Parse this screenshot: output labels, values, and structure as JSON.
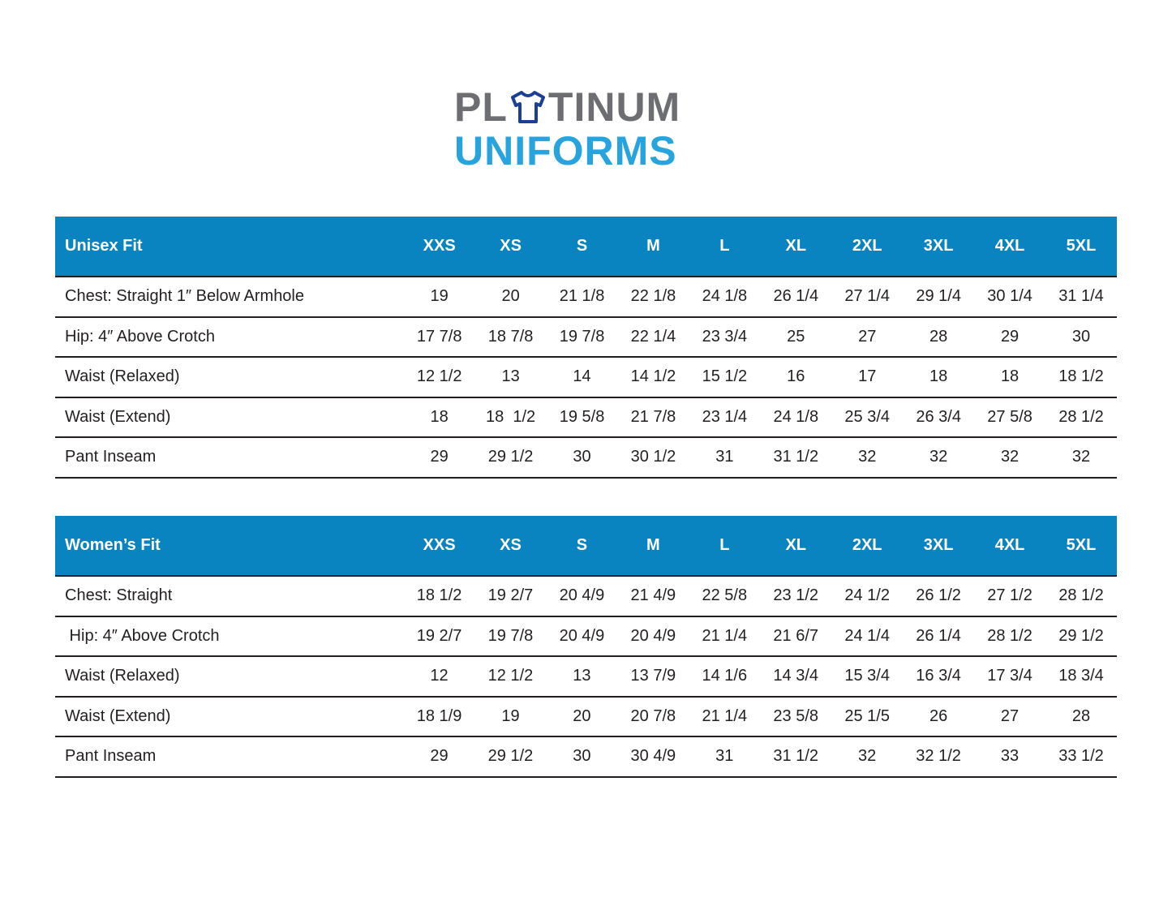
{
  "logo": {
    "line1": "PLATINUM",
    "line2": "UNIFORMS",
    "colors": {
      "gray": "#6d6e71",
      "blue": "#27a3de",
      "shirt": "#1b3f94"
    }
  },
  "header_color": "#0a84c0",
  "sizes": [
    "XXS",
    "XS",
    "S",
    "M",
    "L",
    "XL",
    "2XL",
    "3XL",
    "4XL",
    "5XL"
  ],
  "tables": [
    {
      "title": "Unisex Fit",
      "rows": [
        {
          "label": "Chest: Straight 1″ Below Armhole",
          "values": [
            "19",
            "20",
            "21 1/8",
            "22 1/8",
            "24 1/8",
            "26 1/4",
            "27 1/4",
            "29 1/4",
            "30 1/4",
            "31 1/4"
          ]
        },
        {
          "label": "Hip: 4″ Above Crotch",
          "values": [
            "17 7/8",
            "18 7/8",
            "19 7/8",
            "22 1/4",
            "23 3/4",
            "25",
            "27",
            "28",
            "29",
            "30"
          ]
        },
        {
          "label": "Waist (Relaxed)",
          "values": [
            "12 1/2",
            "13",
            "14",
            "14 1/2",
            "15 1/2",
            "16",
            "17",
            "18",
            "18",
            "18 1/2"
          ]
        },
        {
          "label": "Waist (Extend)",
          "values": [
            "18",
            "18  1/2",
            "19 5/8",
            "21 7/8",
            "23 1/4",
            "24 1/8",
            "25 3/4",
            "26 3/4",
            "27 5/8",
            "28 1/2"
          ]
        },
        {
          "label": "Pant Inseam",
          "values": [
            "29",
            "29 1/2",
            "30",
            "30 1/2",
            "31",
            "31 1/2",
            "32",
            "32",
            "32",
            "32"
          ]
        }
      ]
    },
    {
      "title": "Women’s Fit",
      "rows": [
        {
          "label": "Chest: Straight",
          "values": [
            "18 1/2",
            "19 2/7",
            "20 4/9",
            "21 4/9",
            "22 5/8",
            "23 1/2",
            "24 1/2",
            "26 1/2",
            "27 1/2",
            "28 1/2"
          ]
        },
        {
          "label": " Hip: 4″ Above Crotch",
          "values": [
            "19 2/7",
            "19 7/8",
            "20 4/9",
            "20 4/9",
            "21 1/4",
            "21 6/7",
            "24 1/4",
            "26 1/4",
            "28 1/2",
            "29 1/2"
          ]
        },
        {
          "label": "Waist (Relaxed)",
          "values": [
            "12",
            "12 1/2",
            "13",
            "13 7/9",
            "14 1/6",
            "14 3/4",
            "15 3/4",
            "16 3/4",
            "17 3/4",
            "18 3/4"
          ]
        },
        {
          "label": "Waist (Extend)",
          "values": [
            "18 1/9",
            "19",
            "20",
            "20 7/8",
            "21 1/4",
            "23 5/8",
            "25 1/5",
            "26",
            "27",
            "28"
          ]
        },
        {
          "label": "Pant Inseam",
          "values": [
            "29",
            "29 1/2",
            "30",
            "30 4/9",
            "31",
            "31 1/2",
            "32",
            "32 1/2",
            "33",
            "33 1/2"
          ]
        }
      ]
    }
  ]
}
